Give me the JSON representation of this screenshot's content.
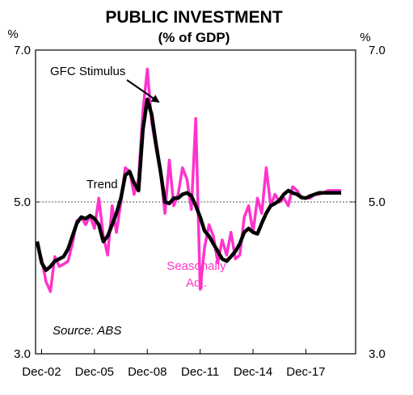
{
  "chart_data": {
    "type": "line",
    "title": "PUBLIC INVESTMENT",
    "subtitle": "(% of GDP)",
    "ylabel_left": "%",
    "ylabel_right": "%",
    "ylim": [
      3.0,
      7.0
    ],
    "yticks": [
      "3.0",
      "5.0",
      "7.0"
    ],
    "reference_line": 5.0,
    "xticks": [
      "Dec-02",
      "Dec-05",
      "Dec-08",
      "Dec-11",
      "Dec-14",
      "Dec-17"
    ],
    "x_start": "Dec-02",
    "quarters": [
      "Sep-02",
      "Dec-02",
      "Mar-03",
      "Jun-03",
      "Sep-03",
      "Dec-03",
      "Mar-04",
      "Jun-04",
      "Sep-04",
      "Dec-04",
      "Mar-05",
      "Jun-05",
      "Sep-05",
      "Dec-05",
      "Mar-06",
      "Jun-06",
      "Sep-06",
      "Dec-06",
      "Mar-07",
      "Jun-07",
      "Sep-07",
      "Dec-07",
      "Mar-08",
      "Jun-08",
      "Sep-08",
      "Dec-08",
      "Mar-09",
      "Jun-09",
      "Sep-09",
      "Dec-09",
      "Mar-10",
      "Jun-10",
      "Sep-10",
      "Dec-10",
      "Mar-11",
      "Jun-11",
      "Sep-11",
      "Dec-11",
      "Mar-12",
      "Jun-12",
      "Sep-12",
      "Dec-12",
      "Mar-13",
      "Jun-13",
      "Sep-13",
      "Dec-13",
      "Mar-14",
      "Jun-14",
      "Sep-14",
      "Dec-14",
      "Mar-15",
      "Jun-15",
      "Sep-15",
      "Dec-15",
      "Mar-16",
      "Jun-16",
      "Sep-16",
      "Dec-16",
      "Mar-17",
      "Jun-17",
      "Sep-17",
      "Dec-17",
      "Mar-18",
      "Jun-18",
      "Sep-18",
      "Dec-18",
      "Mar-19",
      "Jun-19",
      "Sep-19",
      "Dec-19"
    ],
    "series": [
      {
        "name": "Seasonally Adj.",
        "color": "#ff33cc",
        "values": [
          4.45,
          4.25,
          3.95,
          3.82,
          4.28,
          4.15,
          4.18,
          4.22,
          4.45,
          4.75,
          4.8,
          4.7,
          4.82,
          4.65,
          5.05,
          4.55,
          4.3,
          4.95,
          4.6,
          5.0,
          5.45,
          5.4,
          5.1,
          5.3,
          6.2,
          6.75,
          6.05,
          5.7,
          5.4,
          4.85,
          5.55,
          4.95,
          5.1,
          5.45,
          5.3,
          4.9,
          6.1,
          3.85,
          4.4,
          4.7,
          4.55,
          4.2,
          4.5,
          4.3,
          4.6,
          4.25,
          4.3,
          4.8,
          4.95,
          4.6,
          5.05,
          4.85,
          5.45,
          4.95,
          5.1,
          5.0,
          5.05,
          4.95,
          5.2,
          5.15,
          5.05,
          5.05,
          5.05,
          5.1,
          5.1,
          5.12,
          5.15,
          5.15,
          5.15,
          5.15
        ]
      },
      {
        "name": "Trend",
        "color": "#000000",
        "values": [
          4.48,
          4.2,
          4.1,
          4.15,
          4.22,
          4.25,
          4.28,
          4.38,
          4.55,
          4.72,
          4.8,
          4.78,
          4.82,
          4.78,
          4.7,
          4.48,
          4.55,
          4.7,
          4.85,
          5.05,
          5.35,
          5.4,
          5.25,
          5.15,
          5.95,
          6.35,
          6.15,
          5.75,
          5.4,
          5.0,
          4.98,
          5.05,
          5.05,
          5.1,
          5.12,
          5.08,
          4.95,
          4.8,
          4.62,
          4.55,
          4.45,
          4.35,
          4.25,
          4.22,
          4.28,
          4.35,
          4.45,
          4.6,
          4.65,
          4.6,
          4.58,
          4.72,
          4.85,
          4.95,
          4.98,
          5.02,
          5.1,
          5.15,
          5.12,
          5.1,
          5.06,
          5.05,
          5.08,
          5.1,
          5.12,
          5.12,
          5.12,
          5.12,
          5.12,
          5.12
        ]
      }
    ],
    "annotations": [
      {
        "text": "GFC Stimulus",
        "arrow": true
      },
      {
        "text": "Trend"
      },
      {
        "text": "Seasonally",
        "color": "#ff33cc"
      },
      {
        "text": "Adj.",
        "color": "#ff33cc"
      },
      {
        "text": "Source: ABS",
        "italic": true
      }
    ]
  }
}
